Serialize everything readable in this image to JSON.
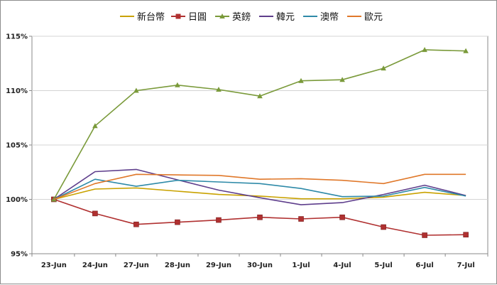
{
  "chart_data": {
    "type": "line",
    "title": "",
    "xlabel": "",
    "ylabel": "",
    "categories": [
      "23-Jun",
      "24-Jun",
      "27-Jun",
      "28-Jun",
      "29-Jun",
      "30-Jun",
      "1-Jul",
      "4-Jul",
      "5-Jul",
      "6-Jul",
      "7-Jul"
    ],
    "ylim": [
      95,
      115
    ],
    "yticks": [
      95,
      100,
      105,
      110,
      115
    ],
    "ytick_labels": [
      "95%",
      "100%",
      "105%",
      "110%",
      "115%"
    ],
    "grid": true,
    "legend_position": "top",
    "series": [
      {
        "name": "新台幣",
        "color": "#c9a200",
        "marker": "none",
        "values": [
          100,
          100.95,
          101.05,
          100.75,
          100.45,
          100.3,
          100.05,
          100.05,
          100.2,
          100.65,
          100.35
        ]
      },
      {
        "name": "日圓",
        "color": "#b03030",
        "marker": "square",
        "values": [
          100,
          98.7,
          97.7,
          97.9,
          98.1,
          98.35,
          98.2,
          98.35,
          97.45,
          96.7,
          96.75
        ]
      },
      {
        "name": "英鎊",
        "color": "#7a9a3a",
        "marker": "triangle",
        "values": [
          100,
          106.75,
          110.0,
          110.5,
          110.1,
          109.5,
          110.9,
          111.0,
          112.05,
          113.75,
          113.65
        ]
      },
      {
        "name": "韓元",
        "color": "#5e3e8c",
        "marker": "none",
        "values": [
          100,
          102.55,
          102.75,
          101.8,
          100.85,
          100.15,
          99.5,
          99.7,
          100.45,
          101.3,
          100.35
        ]
      },
      {
        "name": "澳幣",
        "color": "#2e8aa8",
        "marker": "none",
        "values": [
          100,
          101.85,
          101.2,
          101.75,
          101.6,
          101.45,
          101.0,
          100.25,
          100.3,
          101.1,
          100.3
        ]
      },
      {
        "name": "歐元",
        "color": "#e0782a",
        "marker": "none",
        "values": [
          100,
          101.45,
          102.3,
          102.25,
          102.2,
          101.85,
          101.9,
          101.75,
          101.45,
          102.3,
          102.3
        ]
      }
    ]
  }
}
